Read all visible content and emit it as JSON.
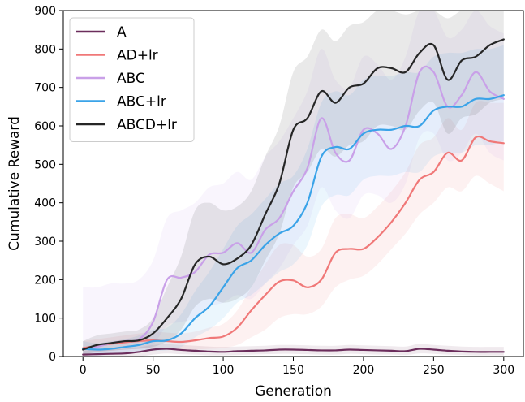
{
  "chart_data": {
    "type": "line",
    "title": "",
    "xlabel": "Generation",
    "ylabel": "Cumulative Reward",
    "xlim": [
      -14,
      314
    ],
    "ylim": [
      0,
      900
    ],
    "xticks": [
      0,
      50,
      100,
      150,
      200,
      250,
      300
    ],
    "yticks": [
      0,
      100,
      200,
      300,
      400,
      500,
      600,
      700,
      800,
      900
    ],
    "grid": false,
    "legend_position": "top-left",
    "x": [
      0,
      10,
      20,
      30,
      40,
      50,
      60,
      70,
      80,
      90,
      100,
      110,
      120,
      130,
      140,
      150,
      160,
      170,
      180,
      190,
      200,
      210,
      220,
      230,
      240,
      250,
      260,
      270,
      280,
      290,
      300
    ],
    "series": [
      {
        "name": "A",
        "color": "#6b2d5c",
        "values": [
          5,
          6,
          7,
          8,
          12,
          18,
          20,
          17,
          15,
          13,
          12,
          14,
          15,
          16,
          18,
          18,
          17,
          16,
          16,
          18,
          17,
          16,
          15,
          14,
          20,
          18,
          15,
          13,
          12,
          12,
          12
        ],
        "band_lower": [
          0,
          0,
          0,
          0,
          0,
          5,
          8,
          6,
          5,
          3,
          3,
          4,
          5,
          6,
          7,
          7,
          6,
          5,
          5,
          7,
          6,
          5,
          5,
          4,
          8,
          7,
          5,
          4,
          3,
          3,
          3
        ],
        "band_upper": [
          15,
          16,
          18,
          20,
          24,
          30,
          32,
          30,
          28,
          26,
          25,
          26,
          27,
          28,
          30,
          30,
          29,
          28,
          28,
          30,
          29,
          28,
          27,
          26,
          33,
          30,
          28,
          26,
          25,
          25,
          25
        ]
      },
      {
        "name": "AD+lr",
        "color": "#f07878",
        "values": [
          22,
          28,
          33,
          37,
          40,
          42,
          40,
          38,
          42,
          48,
          52,
          75,
          120,
          160,
          195,
          198,
          180,
          200,
          270,
          280,
          280,
          310,
          350,
          400,
          460,
          480,
          530,
          510,
          570,
          560,
          555
        ],
        "band_lower": [
          5,
          10,
          15,
          18,
          20,
          20,
          18,
          16,
          18,
          20,
          22,
          30,
          50,
          70,
          100,
          110,
          110,
          130,
          180,
          200,
          210,
          240,
          280,
          320,
          370,
          400,
          440,
          430,
          470,
          450,
          430
        ],
        "band_upper": [
          40,
          45,
          50,
          55,
          60,
          65,
          62,
          60,
          65,
          75,
          85,
          120,
          180,
          240,
          290,
          290,
          260,
          280,
          360,
          370,
          360,
          390,
          430,
          480,
          550,
          570,
          620,
          590,
          660,
          660,
          660
        ]
      },
      {
        "name": "ABC",
        "color": "#c9a0e8",
        "values": [
          20,
          25,
          35,
          40,
          45,
          90,
          200,
          205,
          220,
          265,
          270,
          295,
          270,
          330,
          360,
          430,
          490,
          620,
          530,
          510,
          590,
          580,
          540,
          600,
          740,
          740,
          650,
          680,
          740,
          690,
          670
        ],
        "band_lower": [
          0,
          0,
          5,
          8,
          10,
          30,
          80,
          90,
          100,
          130,
          140,
          160,
          150,
          190,
          230,
          290,
          340,
          440,
          380,
          360,
          420,
          420,
          400,
          450,
          570,
          580,
          510,
          530,
          580,
          530,
          510
        ],
        "band_upper": [
          180,
          180,
          190,
          190,
          200,
          250,
          360,
          380,
          400,
          440,
          450,
          480,
          460,
          520,
          560,
          620,
          690,
          800,
          720,
          700,
          780,
          760,
          720,
          780,
          900,
          900,
          830,
          850,
          900,
          860,
          840
        ]
      },
      {
        "name": "ABC+lr",
        "color": "#3aa3e8",
        "values": [
          20,
          18,
          20,
          25,
          30,
          40,
          42,
          60,
          100,
          130,
          180,
          230,
          250,
          290,
          320,
          340,
          400,
          520,
          545,
          540,
          580,
          590,
          590,
          600,
          600,
          640,
          650,
          650,
          670,
          670,
          680
        ],
        "band_lower": [
          5,
          5,
          6,
          8,
          10,
          15,
          16,
          25,
          50,
          70,
          100,
          140,
          160,
          190,
          220,
          240,
          290,
          390,
          420,
          420,
          460,
          470,
          470,
          480,
          480,
          520,
          530,
          530,
          550,
          550,
          560
        ],
        "band_upper": [
          40,
          35,
          40,
          45,
          55,
          70,
          75,
          110,
          170,
          220,
          280,
          340,
          370,
          410,
          450,
          470,
          540,
          660,
          690,
          680,
          720,
          730,
          730,
          740,
          740,
          780,
          790,
          790,
          800,
          800,
          810
        ]
      },
      {
        "name": "ABCD+lr",
        "color": "#262626",
        "values": [
          18,
          30,
          35,
          40,
          42,
          60,
          100,
          150,
          240,
          260,
          240,
          255,
          290,
          370,
          450,
          590,
          620,
          690,
          660,
          700,
          710,
          750,
          750,
          740,
          790,
          810,
          720,
          770,
          780,
          810,
          825
        ],
        "band_lower": [
          5,
          12,
          15,
          18,
          20,
          25,
          40,
          70,
          130,
          150,
          140,
          150,
          180,
          250,
          320,
          440,
          480,
          540,
          520,
          550,
          560,
          600,
          600,
          590,
          640,
          660,
          580,
          620,
          630,
          660,
          670
        ],
        "band_upper": [
          40,
          55,
          60,
          65,
          70,
          100,
          180,
          260,
          380,
          400,
          380,
          390,
          430,
          520,
          600,
          740,
          780,
          850,
          820,
          860,
          870,
          900,
          900,
          890,
          900,
          900,
          880,
          900,
          900,
          900,
          900
        ]
      }
    ]
  }
}
